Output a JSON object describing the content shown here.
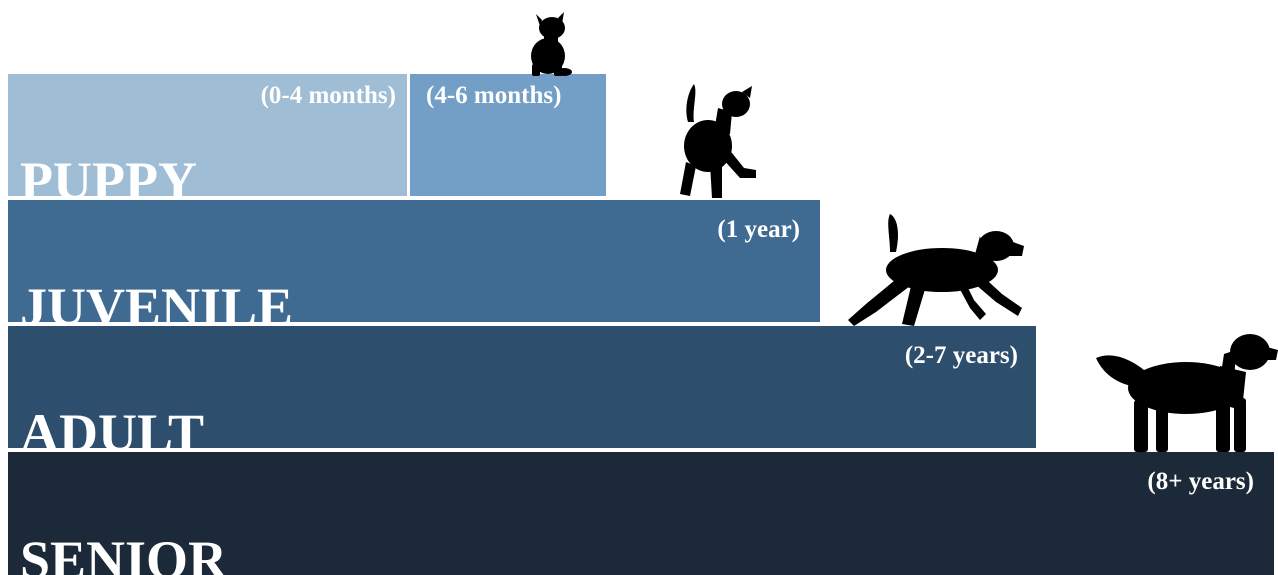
{
  "colors": {
    "puppy_early": "#a0bdd6",
    "puppy_late": "#739fc7",
    "juvenile": "#3f6b93",
    "adult": "#2d4e6c",
    "senior": "#1b2938",
    "silhouette": "#000000",
    "text": "#ffffff"
  },
  "stages": {
    "puppy": {
      "label": "PUPPY",
      "age_early": "(0-4 months)",
      "age_late": "(4-6 months)"
    },
    "juvenile": {
      "label": "JUVENILE",
      "age": "(1 year)"
    },
    "adult": {
      "label": "ADULT",
      "age": "(2-7 years)"
    },
    "senior": {
      "label": "SENIOR",
      "age": "(8+ years)"
    }
  },
  "icons": [
    "sitting-puppy-icon",
    "jumping-young-dog-icon",
    "running-dog-icon",
    "standing-senior-dog-icon"
  ]
}
